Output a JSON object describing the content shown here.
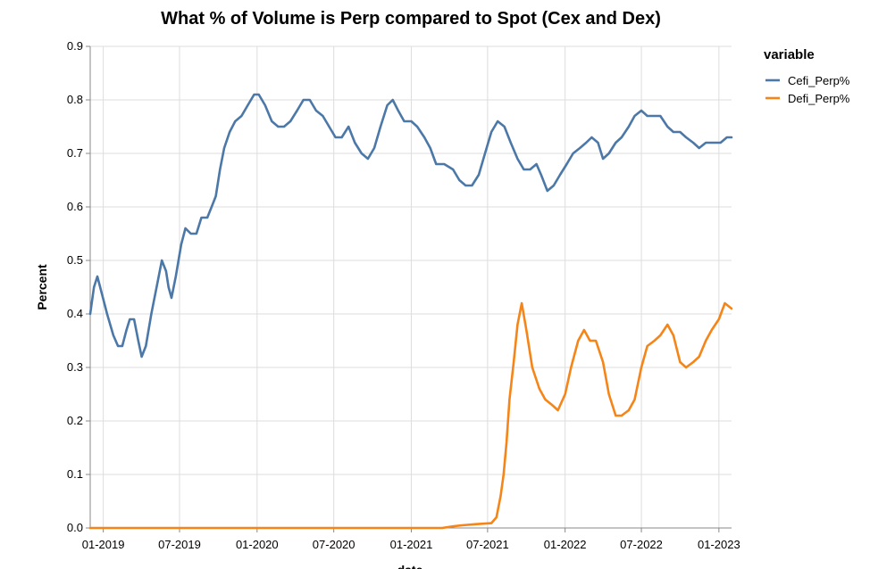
{
  "chart_data": {
    "type": "line",
    "title": "What % of Volume is Perp compared to Spot (Cex and Dex)",
    "xlabel": "date",
    "ylabel": "Percent",
    "ylim": [
      0,
      0.9
    ],
    "xlim": [
      "2018-12-01",
      "2023-01-31"
    ],
    "grid": true,
    "legend": {
      "title": "variable",
      "placement": "top-right"
    },
    "x_ticks": [
      {
        "date": "2019-01-01",
        "label": "01-2019"
      },
      {
        "date": "2019-07-01",
        "label": "07-2019"
      },
      {
        "date": "2020-01-01",
        "label": "01-2020"
      },
      {
        "date": "2020-07-01",
        "label": "07-2020"
      },
      {
        "date": "2021-01-01",
        "label": "01-2021"
      },
      {
        "date": "2021-07-01",
        "label": "07-2021"
      },
      {
        "date": "2022-01-01",
        "label": "01-2022"
      },
      {
        "date": "2022-07-01",
        "label": "07-2022"
      },
      {
        "date": "2023-01-01",
        "label": "01-2023"
      }
    ],
    "y_ticks": [
      {
        "value": 0.0,
        "label": "0.0"
      },
      {
        "value": 0.1,
        "label": "0.1"
      },
      {
        "value": 0.2,
        "label": "0.2"
      },
      {
        "value": 0.3,
        "label": "0.3"
      },
      {
        "value": 0.4,
        "label": "0.4"
      },
      {
        "value": 0.5,
        "label": "0.5"
      },
      {
        "value": 0.6,
        "label": "0.6"
      },
      {
        "value": 0.7,
        "label": "0.7"
      },
      {
        "value": 0.8,
        "label": "0.8"
      },
      {
        "value": 0.9,
        "label": "0.9"
      }
    ],
    "series": [
      {
        "name": "Cefi_Perp%",
        "color": "#4c78a8",
        "points": [
          [
            "2018-12-01",
            0.4
          ],
          [
            "2018-12-10",
            0.45
          ],
          [
            "2018-12-18",
            0.47
          ],
          [
            "2018-12-28",
            0.44
          ],
          [
            "2019-01-10",
            0.4
          ],
          [
            "2019-01-25",
            0.36
          ],
          [
            "2019-02-05",
            0.34
          ],
          [
            "2019-02-15",
            0.34
          ],
          [
            "2019-02-25",
            0.37
          ],
          [
            "2019-03-05",
            0.39
          ],
          [
            "2019-03-15",
            0.39
          ],
          [
            "2019-03-25",
            0.35
          ],
          [
            "2019-04-02",
            0.32
          ],
          [
            "2019-04-12",
            0.34
          ],
          [
            "2019-04-25",
            0.4
          ],
          [
            "2019-05-10",
            0.46
          ],
          [
            "2019-05-20",
            0.5
          ],
          [
            "2019-05-30",
            0.48
          ],
          [
            "2019-06-05",
            0.45
          ],
          [
            "2019-06-12",
            0.43
          ],
          [
            "2019-06-22",
            0.47
          ],
          [
            "2019-07-05",
            0.53
          ],
          [
            "2019-07-15",
            0.56
          ],
          [
            "2019-07-28",
            0.55
          ],
          [
            "2019-08-10",
            0.55
          ],
          [
            "2019-08-22",
            0.58
          ],
          [
            "2019-09-05",
            0.58
          ],
          [
            "2019-09-15",
            0.6
          ],
          [
            "2019-09-25",
            0.62
          ],
          [
            "2019-10-05",
            0.67
          ],
          [
            "2019-10-15",
            0.71
          ],
          [
            "2019-10-28",
            0.74
          ],
          [
            "2019-11-10",
            0.76
          ],
          [
            "2019-11-25",
            0.77
          ],
          [
            "2019-12-10",
            0.79
          ],
          [
            "2019-12-25",
            0.81
          ],
          [
            "2020-01-05",
            0.81
          ],
          [
            "2020-01-20",
            0.79
          ],
          [
            "2020-02-05",
            0.76
          ],
          [
            "2020-02-20",
            0.75
          ],
          [
            "2020-03-05",
            0.75
          ],
          [
            "2020-03-20",
            0.76
          ],
          [
            "2020-04-05",
            0.78
          ],
          [
            "2020-04-20",
            0.8
          ],
          [
            "2020-05-05",
            0.8
          ],
          [
            "2020-05-20",
            0.78
          ],
          [
            "2020-06-05",
            0.77
          ],
          [
            "2020-06-20",
            0.75
          ],
          [
            "2020-07-05",
            0.73
          ],
          [
            "2020-07-20",
            0.73
          ],
          [
            "2020-08-05",
            0.75
          ],
          [
            "2020-08-20",
            0.72
          ],
          [
            "2020-09-05",
            0.7
          ],
          [
            "2020-09-20",
            0.69
          ],
          [
            "2020-10-05",
            0.71
          ],
          [
            "2020-10-20",
            0.75
          ],
          [
            "2020-11-05",
            0.79
          ],
          [
            "2020-11-18",
            0.8
          ],
          [
            "2020-12-01",
            0.78
          ],
          [
            "2020-12-15",
            0.76
          ],
          [
            "2021-01-01",
            0.76
          ],
          [
            "2021-01-15",
            0.75
          ],
          [
            "2021-02-01",
            0.73
          ],
          [
            "2021-02-15",
            0.71
          ],
          [
            "2021-03-01",
            0.68
          ],
          [
            "2021-03-20",
            0.68
          ],
          [
            "2021-04-10",
            0.67
          ],
          [
            "2021-04-25",
            0.65
          ],
          [
            "2021-05-10",
            0.64
          ],
          [
            "2021-05-25",
            0.64
          ],
          [
            "2021-06-10",
            0.66
          ],
          [
            "2021-06-25",
            0.7
          ],
          [
            "2021-07-10",
            0.74
          ],
          [
            "2021-07-25",
            0.76
          ],
          [
            "2021-08-10",
            0.75
          ],
          [
            "2021-08-25",
            0.72
          ],
          [
            "2021-09-10",
            0.69
          ],
          [
            "2021-09-25",
            0.67
          ],
          [
            "2021-10-10",
            0.67
          ],
          [
            "2021-10-25",
            0.68
          ],
          [
            "2021-11-05",
            0.66
          ],
          [
            "2021-11-20",
            0.63
          ],
          [
            "2021-12-05",
            0.64
          ],
          [
            "2021-12-20",
            0.66
          ],
          [
            "2022-01-05",
            0.68
          ],
          [
            "2022-01-20",
            0.7
          ],
          [
            "2022-02-05",
            0.71
          ],
          [
            "2022-02-20",
            0.72
          ],
          [
            "2022-03-05",
            0.73
          ],
          [
            "2022-03-20",
            0.72
          ],
          [
            "2022-04-01",
            0.69
          ],
          [
            "2022-04-15",
            0.7
          ],
          [
            "2022-05-01",
            0.72
          ],
          [
            "2022-05-15",
            0.73
          ],
          [
            "2022-06-01",
            0.75
          ],
          [
            "2022-06-15",
            0.77
          ],
          [
            "2022-07-01",
            0.78
          ],
          [
            "2022-07-15",
            0.77
          ],
          [
            "2022-08-01",
            0.77
          ],
          [
            "2022-08-15",
            0.77
          ],
          [
            "2022-09-01",
            0.75
          ],
          [
            "2022-09-15",
            0.74
          ],
          [
            "2022-10-01",
            0.74
          ],
          [
            "2022-10-15",
            0.73
          ],
          [
            "2022-11-01",
            0.72
          ],
          [
            "2022-11-15",
            0.71
          ],
          [
            "2022-12-01",
            0.72
          ],
          [
            "2022-12-15",
            0.72
          ],
          [
            "2023-01-05",
            0.72
          ],
          [
            "2023-01-20",
            0.73
          ],
          [
            "2023-01-31",
            0.73
          ]
        ]
      },
      {
        "name": "Defi_Perp%",
        "color": "#f58518",
        "points": [
          [
            "2018-12-01",
            0.0
          ],
          [
            "2021-03-15",
            0.0
          ],
          [
            "2021-04-10",
            0.003
          ],
          [
            "2021-05-01",
            0.005
          ],
          [
            "2021-06-01",
            0.007
          ],
          [
            "2021-07-10",
            0.009
          ],
          [
            "2021-07-22",
            0.02
          ],
          [
            "2021-08-01",
            0.06
          ],
          [
            "2021-08-08",
            0.1
          ],
          [
            "2021-08-15",
            0.16
          ],
          [
            "2021-08-22",
            0.24
          ],
          [
            "2021-09-01",
            0.31
          ],
          [
            "2021-09-10",
            0.38
          ],
          [
            "2021-09-20",
            0.42
          ],
          [
            "2021-10-01",
            0.37
          ],
          [
            "2021-10-15",
            0.3
          ],
          [
            "2021-11-01",
            0.26
          ],
          [
            "2021-11-15",
            0.24
          ],
          [
            "2021-12-01",
            0.23
          ],
          [
            "2021-12-15",
            0.22
          ],
          [
            "2022-01-01",
            0.25
          ],
          [
            "2022-01-15",
            0.3
          ],
          [
            "2022-02-01",
            0.35
          ],
          [
            "2022-02-15",
            0.37
          ],
          [
            "2022-03-01",
            0.35
          ],
          [
            "2022-03-15",
            0.35
          ],
          [
            "2022-04-01",
            0.31
          ],
          [
            "2022-04-15",
            0.25
          ],
          [
            "2022-05-01",
            0.21
          ],
          [
            "2022-05-15",
            0.21
          ],
          [
            "2022-06-01",
            0.22
          ],
          [
            "2022-06-15",
            0.24
          ],
          [
            "2022-07-01",
            0.3
          ],
          [
            "2022-07-15",
            0.34
          ],
          [
            "2022-08-01",
            0.35
          ],
          [
            "2022-08-15",
            0.36
          ],
          [
            "2022-09-01",
            0.38
          ],
          [
            "2022-09-15",
            0.36
          ],
          [
            "2022-10-01",
            0.31
          ],
          [
            "2022-10-15",
            0.3
          ],
          [
            "2022-11-01",
            0.31
          ],
          [
            "2022-11-15",
            0.32
          ],
          [
            "2022-12-01",
            0.35
          ],
          [
            "2022-12-15",
            0.37
          ],
          [
            "2023-01-01",
            0.39
          ],
          [
            "2023-01-15",
            0.42
          ],
          [
            "2023-01-31",
            0.41
          ]
        ]
      }
    ]
  }
}
